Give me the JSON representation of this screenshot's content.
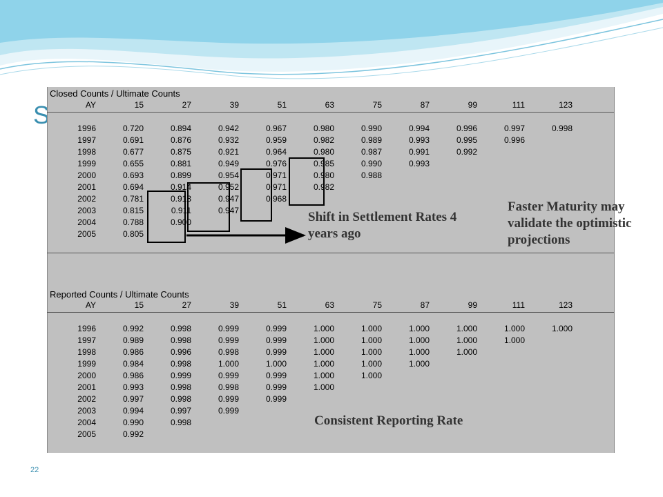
{
  "slide": {
    "title": "S",
    "page_number": "22",
    "colors": {
      "accent": "#3a8fb0",
      "panel": "#c0c0c0"
    }
  },
  "closed": {
    "title": "Closed Counts / Ultimate Counts",
    "ay_label": "AY",
    "columns": [
      "15",
      "27",
      "39",
      "51",
      "63",
      "75",
      "87",
      "99",
      "111",
      "123"
    ],
    "rows": [
      {
        "ay": "1996",
        "values": [
          "0.720",
          "0.894",
          "0.942",
          "0.967",
          "0.980",
          "0.990",
          "0.994",
          "0.996",
          "0.997",
          "0.998"
        ]
      },
      {
        "ay": "1997",
        "values": [
          "0.691",
          "0.876",
          "0.932",
          "0.959",
          "0.982",
          "0.989",
          "0.993",
          "0.995",
          "0.996"
        ]
      },
      {
        "ay": "1998",
        "values": [
          "0.677",
          "0.875",
          "0.921",
          "0.964",
          "0.980",
          "0.987",
          "0.991",
          "0.992"
        ]
      },
      {
        "ay": "1999",
        "values": [
          "0.655",
          "0.881",
          "0.949",
          "0.976",
          "0.985",
          "0.990",
          "0.993"
        ]
      },
      {
        "ay": "2000",
        "values": [
          "0.693",
          "0.899",
          "0.954",
          "0.971",
          "0.980",
          "0.988"
        ]
      },
      {
        "ay": "2001",
        "values": [
          "0.694",
          "0.914",
          "0.952",
          "0.971",
          "0.982"
        ]
      },
      {
        "ay": "2002",
        "values": [
          "0.781",
          "0.913",
          "0.947",
          "0.968"
        ]
      },
      {
        "ay": "2003",
        "values": [
          "0.815",
          "0.911",
          "0.947"
        ]
      },
      {
        "ay": "2004",
        "values": [
          "0.788",
          "0.900"
        ]
      },
      {
        "ay": "2005",
        "values": [
          "0.805"
        ]
      }
    ]
  },
  "reported": {
    "title": "Reported Counts / Ultimate Counts",
    "ay_label": "AY",
    "columns": [
      "15",
      "27",
      "39",
      "51",
      "63",
      "75",
      "87",
      "99",
      "111",
      "123"
    ],
    "rows": [
      {
        "ay": "1996",
        "values": [
          "0.992",
          "0.998",
          "0.999",
          "0.999",
          "1.000",
          "1.000",
          "1.000",
          "1.000",
          "1.000",
          "1.000"
        ]
      },
      {
        "ay": "1997",
        "values": [
          "0.989",
          "0.998",
          "0.999",
          "0.999",
          "1.000",
          "1.000",
          "1.000",
          "1.000",
          "1.000"
        ]
      },
      {
        "ay": "1998",
        "values": [
          "0.986",
          "0.996",
          "0.998",
          "0.999",
          "1.000",
          "1.000",
          "1.000",
          "1.000"
        ]
      },
      {
        "ay": "1999",
        "values": [
          "0.984",
          "0.998",
          "1.000",
          "1.000",
          "1.000",
          "1.000",
          "1.000"
        ]
      },
      {
        "ay": "2000",
        "values": [
          "0.986",
          "0.999",
          "0.999",
          "0.999",
          "1.000",
          "1.000"
        ]
      },
      {
        "ay": "2001",
        "values": [
          "0.993",
          "0.998",
          "0.998",
          "0.999",
          "1.000"
        ]
      },
      {
        "ay": "2002",
        "values": [
          "0.997",
          "0.998",
          "0.999",
          "0.999"
        ]
      },
      {
        "ay": "2003",
        "values": [
          "0.994",
          "0.997",
          "0.999"
        ]
      },
      {
        "ay": "2004",
        "values": [
          "0.990",
          "0.998"
        ]
      },
      {
        "ay": "2005",
        "values": [
          "0.992"
        ]
      }
    ]
  },
  "annotations": {
    "shift": "Shift in Settlement Rates 4 years ago",
    "faster": "Faster Maturity may validate the optimistic projections",
    "consistent": "Consistent Reporting Rate"
  }
}
